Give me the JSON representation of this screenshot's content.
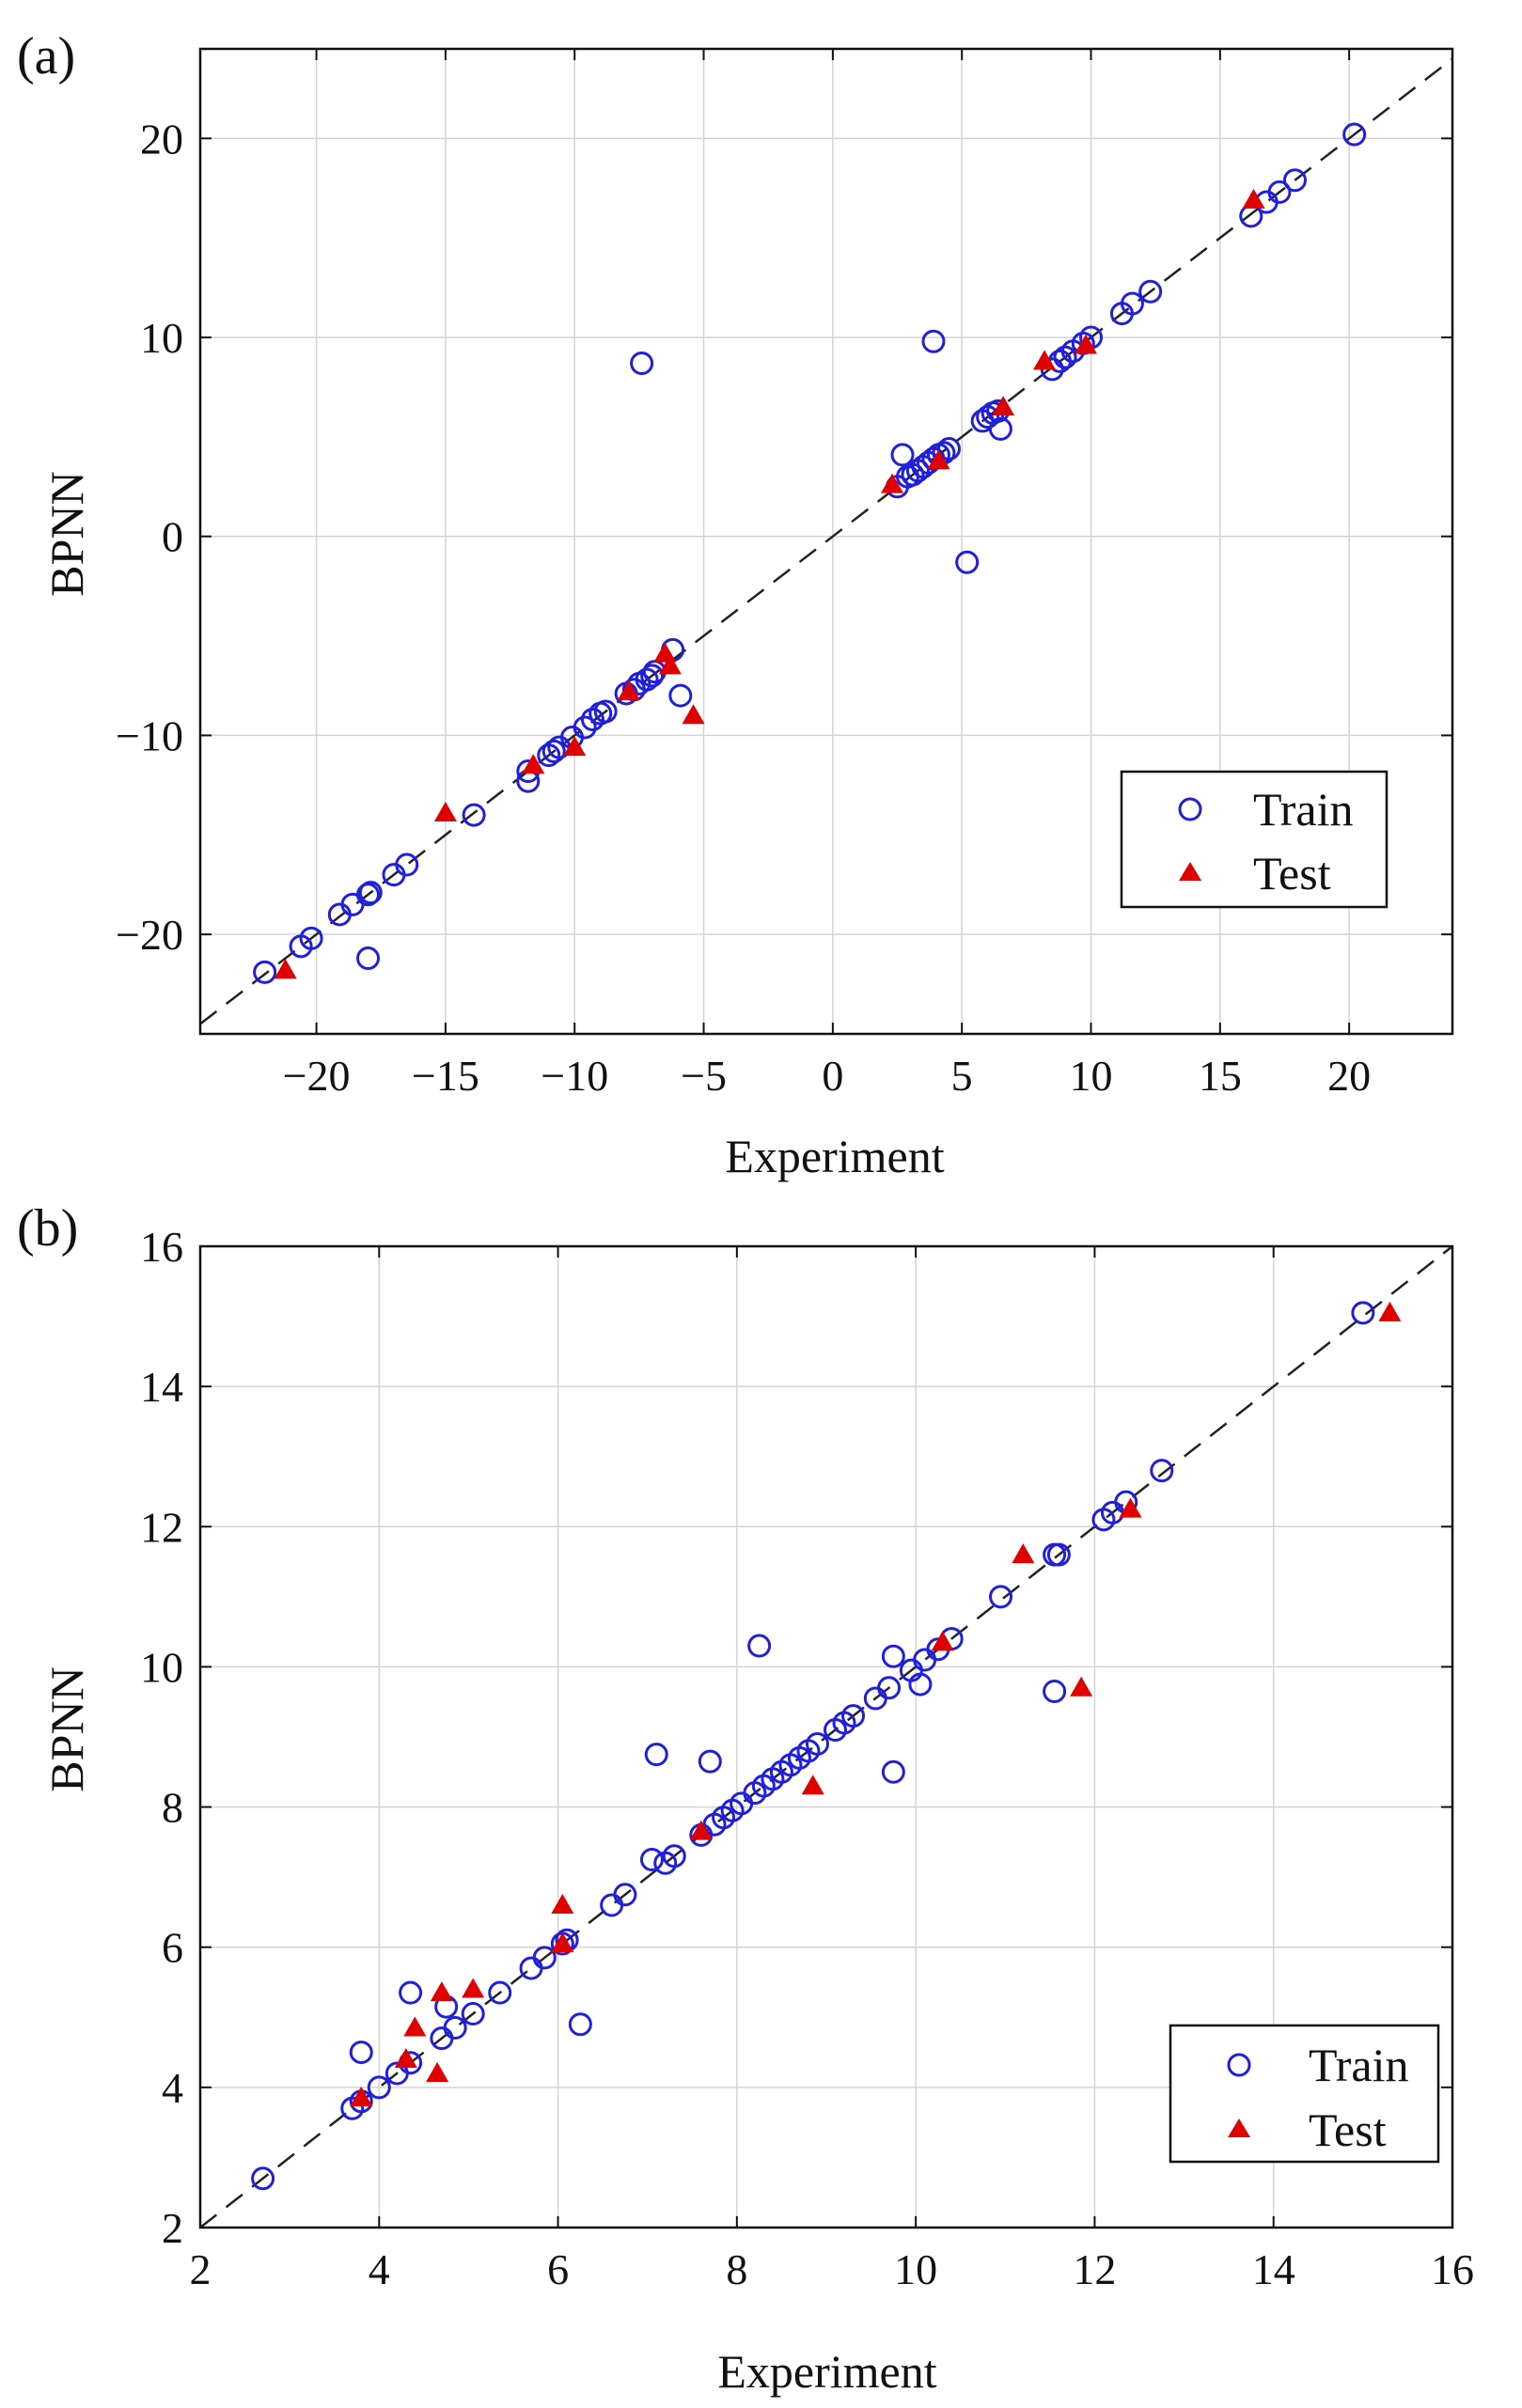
{
  "figure": {
    "title": ""
  },
  "chart_data": [
    {
      "panel_label": "(a)",
      "type": "scatter",
      "xlabel": "Experiment",
      "ylabel": "BPNN",
      "xlim": [
        -24.5,
        24
      ],
      "ylim": [
        -25,
        24.5
      ],
      "xticks": [
        -20,
        -15,
        -10,
        -5,
        0,
        5,
        10,
        15,
        20
      ],
      "xtick_labels": [
        "−20",
        "−15",
        "−10",
        "−5",
        "0",
        "5",
        "10",
        "15",
        "20"
      ],
      "yticks": [
        -20,
        -10,
        0,
        10,
        20
      ],
      "ytick_labels": [
        "−20",
        "−10",
        "0",
        "10",
        "20"
      ],
      "grid": true,
      "reference_line": "y = x",
      "legend": {
        "placement": "bottom-right",
        "entries": [
          "Train",
          "Test"
        ]
      },
      "series": [
        {
          "name": "Train",
          "marker": "open-circle",
          "color": "#1f1fdd",
          "points": [
            [
              -22,
              -21.9
            ],
            [
              -20.6,
              -20.6
            ],
            [
              -20.2,
              -20.2
            ],
            [
              -19.1,
              -19.0
            ],
            [
              -18.6,
              -18.5
            ],
            [
              -18.0,
              -18.0
            ],
            [
              -17.9,
              -17.9
            ],
            [
              -18.0,
              -21.2
            ],
            [
              -17.0,
              -17.0
            ],
            [
              -16.5,
              -16.5
            ],
            [
              -13.9,
              -14.0
            ],
            [
              -11.8,
              -11.8
            ],
            [
              -11.8,
              -12.3
            ],
            [
              -11.0,
              -11.0
            ],
            [
              -10.8,
              -10.8
            ],
            [
              -10.6,
              -10.6
            ],
            [
              -10.1,
              -10.1
            ],
            [
              -9.6,
              -9.6
            ],
            [
              -9.3,
              -9.2
            ],
            [
              -9.0,
              -8.9
            ],
            [
              -8.8,
              -8.8
            ],
            [
              -8.0,
              -7.9
            ],
            [
              -7.7,
              -7.7
            ],
            [
              -7.5,
              -7.4
            ],
            [
              -7.2,
              -7.2
            ],
            [
              -7.0,
              -7.0
            ],
            [
              -6.9,
              -6.8
            ],
            [
              -6.2,
              -5.7
            ],
            [
              -5.9,
              -8.0
            ],
            [
              -7.4,
              8.7
            ],
            [
              2.5,
              2.5
            ],
            [
              2.7,
              4.1
            ],
            [
              2.9,
              3.0
            ],
            [
              3.1,
              3.1
            ],
            [
              3.3,
              3.3
            ],
            [
              3.5,
              3.5
            ],
            [
              3.7,
              3.7
            ],
            [
              3.9,
              3.9
            ],
            [
              4.1,
              4.1
            ],
            [
              4.3,
              4.2
            ],
            [
              4.5,
              4.4
            ],
            [
              3.9,
              9.8
            ],
            [
              5.2,
              -1.3
            ],
            [
              5.8,
              5.8
            ],
            [
              6.0,
              6.0
            ],
            [
              6.2,
              6.2
            ],
            [
              6.4,
              6.3
            ],
            [
              6.5,
              5.4
            ],
            [
              8.5,
              8.4
            ],
            [
              8.8,
              8.8
            ],
            [
              9.0,
              9.0
            ],
            [
              9.3,
              9.3
            ],
            [
              9.7,
              9.7
            ],
            [
              10.0,
              10.0
            ],
            [
              11.2,
              11.2
            ],
            [
              11.6,
              11.7
            ],
            [
              12.3,
              12.3
            ],
            [
              16.2,
              16.1
            ],
            [
              16.8,
              16.8
            ],
            [
              17.3,
              17.3
            ],
            [
              17.9,
              17.9
            ],
            [
              20.2,
              20.2
            ]
          ]
        },
        {
          "name": "Test",
          "marker": "filled-triangle",
          "color": "#e00000",
          "points": [
            [
              -21.2,
              -21.8
            ],
            [
              -15.0,
              -13.9
            ],
            [
              -11.6,
              -11.5
            ],
            [
              -10.0,
              -10.6
            ],
            [
              -7.9,
              -7.8
            ],
            [
              -6.5,
              -5.9
            ],
            [
              -6.3,
              -6.5
            ],
            [
              -5.4,
              -9.0
            ],
            [
              2.3,
              2.6
            ],
            [
              4.1,
              3.8
            ],
            [
              6.6,
              6.5
            ],
            [
              8.2,
              8.8
            ],
            [
              9.8,
              9.6
            ],
            [
              16.3,
              16.9
            ]
          ]
        }
      ]
    },
    {
      "panel_label": "(b)",
      "type": "scatter",
      "xlabel": "Experiment",
      "ylabel": "BPNN",
      "xlim": [
        2,
        16
      ],
      "ylim": [
        2,
        16
      ],
      "xticks": [
        2,
        4,
        6,
        8,
        10,
        12,
        14,
        16
      ],
      "xtick_labels": [
        "2",
        "4",
        "6",
        "8",
        "10",
        "12",
        "14",
        "16"
      ],
      "yticks": [
        2,
        4,
        6,
        8,
        10,
        12,
        14,
        16
      ],
      "ytick_labels": [
        "2",
        "4",
        "6",
        "8",
        "10",
        "12",
        "14",
        "16"
      ],
      "grid": true,
      "reference_line": "y = x",
      "legend": {
        "placement": "bottom-right",
        "entries": [
          "Train",
          "Test"
        ]
      },
      "series": [
        {
          "name": "Train",
          "marker": "open-circle",
          "color": "#1f1fdd",
          "points": [
            [
              2.7,
              2.7
            ],
            [
              3.7,
              3.7
            ],
            [
              3.8,
              3.8
            ],
            [
              3.8,
              4.5
            ],
            [
              4.0,
              4.0
            ],
            [
              4.2,
              4.2
            ],
            [
              4.35,
              4.35
            ],
            [
              4.35,
              5.35
            ],
            [
              4.7,
              4.7
            ],
            [
              4.75,
              5.15
            ],
            [
              4.85,
              4.85
            ],
            [
              5.05,
              5.05
            ],
            [
              5.35,
              5.35
            ],
            [
              5.7,
              5.7
            ],
            [
              5.85,
              5.85
            ],
            [
              6.05,
              6.05
            ],
            [
              6.1,
              6.1
            ],
            [
              6.25,
              4.9
            ],
            [
              6.6,
              6.6
            ],
            [
              6.75,
              6.75
            ],
            [
              7.05,
              7.25
            ],
            [
              7.1,
              8.75
            ],
            [
              7.2,
              7.2
            ],
            [
              7.3,
              7.3
            ],
            [
              7.6,
              7.6
            ],
            [
              7.7,
              8.65
            ],
            [
              7.75,
              7.75
            ],
            [
              7.85,
              7.85
            ],
            [
              7.95,
              7.95
            ],
            [
              8.05,
              8.05
            ],
            [
              8.2,
              8.2
            ],
            [
              8.25,
              10.3
            ],
            [
              8.3,
              8.3
            ],
            [
              8.4,
              8.4
            ],
            [
              8.5,
              8.5
            ],
            [
              8.6,
              8.6
            ],
            [
              8.7,
              8.7
            ],
            [
              8.8,
              8.8
            ],
            [
              8.9,
              8.9
            ],
            [
              9.1,
              9.1
            ],
            [
              9.2,
              9.2
            ],
            [
              9.3,
              9.3
            ],
            [
              9.55,
              9.55
            ],
            [
              9.7,
              9.7
            ],
            [
              9.75,
              10.15
            ],
            [
              9.75,
              8.5
            ],
            [
              9.95,
              9.95
            ],
            [
              10.05,
              9.75
            ],
            [
              10.1,
              10.1
            ],
            [
              10.25,
              10.25
            ],
            [
              10.4,
              10.4
            ],
            [
              10.95,
              11.0
            ],
            [
              11.55,
              11.6
            ],
            [
              11.6,
              11.6
            ],
            [
              11.55,
              9.65
            ],
            [
              12.1,
              12.1
            ],
            [
              12.2,
              12.2
            ],
            [
              12.35,
              12.35
            ],
            [
              12.75,
              12.8
            ],
            [
              15.0,
              15.05
            ]
          ]
        },
        {
          "name": "Test",
          "marker": "filled-triangle",
          "color": "#e00000",
          "points": [
            [
              3.8,
              3.85
            ],
            [
              4.3,
              4.4
            ],
            [
              4.4,
              4.85
            ],
            [
              4.65,
              4.2
            ],
            [
              4.7,
              5.35
            ],
            [
              5.05,
              5.4
            ],
            [
              6.05,
              6.6
            ],
            [
              6.05,
              6.05
            ],
            [
              7.6,
              7.65
            ],
            [
              8.85,
              8.3
            ],
            [
              10.3,
              10.35
            ],
            [
              11.2,
              11.6
            ],
            [
              11.85,
              9.7
            ],
            [
              12.4,
              12.25
            ],
            [
              15.3,
              15.05
            ]
          ]
        }
      ]
    }
  ]
}
